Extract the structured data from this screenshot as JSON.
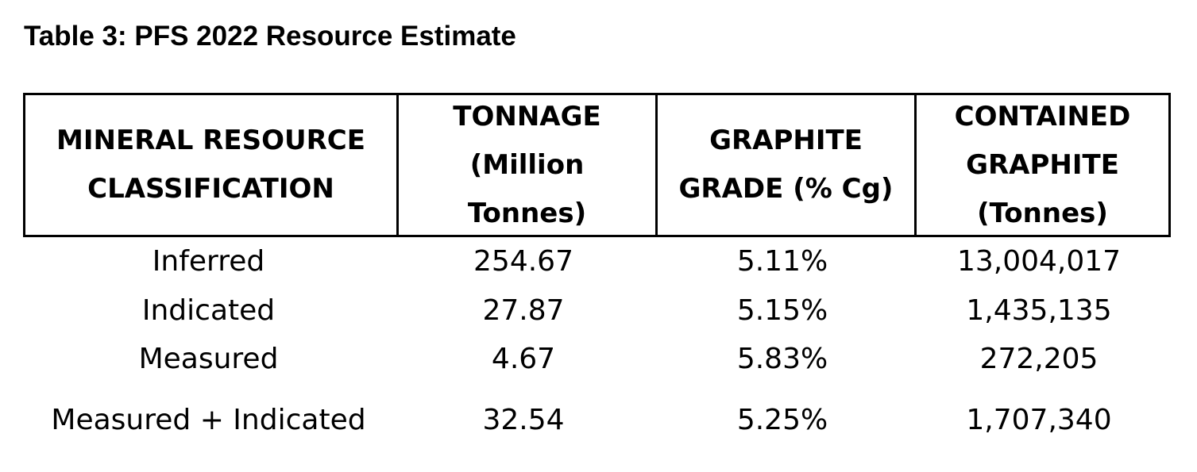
{
  "title": "Table 3: PFS 2022 Resource Estimate",
  "table": {
    "headers": [
      [
        "MINERAL RESOURCE",
        "CLASSIFICATION"
      ],
      [
        "TONNAGE",
        "(Million",
        "Tonnes)"
      ],
      [
        "GRAPHITE",
        "GRADE (% Cg)"
      ],
      [
        "CONTAINED",
        "GRAPHITE",
        "(Tonnes)"
      ]
    ],
    "rows": [
      [
        "Inferred",
        "254.67",
        "5.11%",
        "13,004,017"
      ],
      [
        "Indicated",
        "27.87",
        "5.15%",
        "1,435,135"
      ],
      [
        "Measured",
        "4.67",
        "5.83%",
        "272,205"
      ],
      [
        "Measured + Indicated",
        "32.54",
        "5.25%",
        "1,707,340"
      ]
    ]
  }
}
